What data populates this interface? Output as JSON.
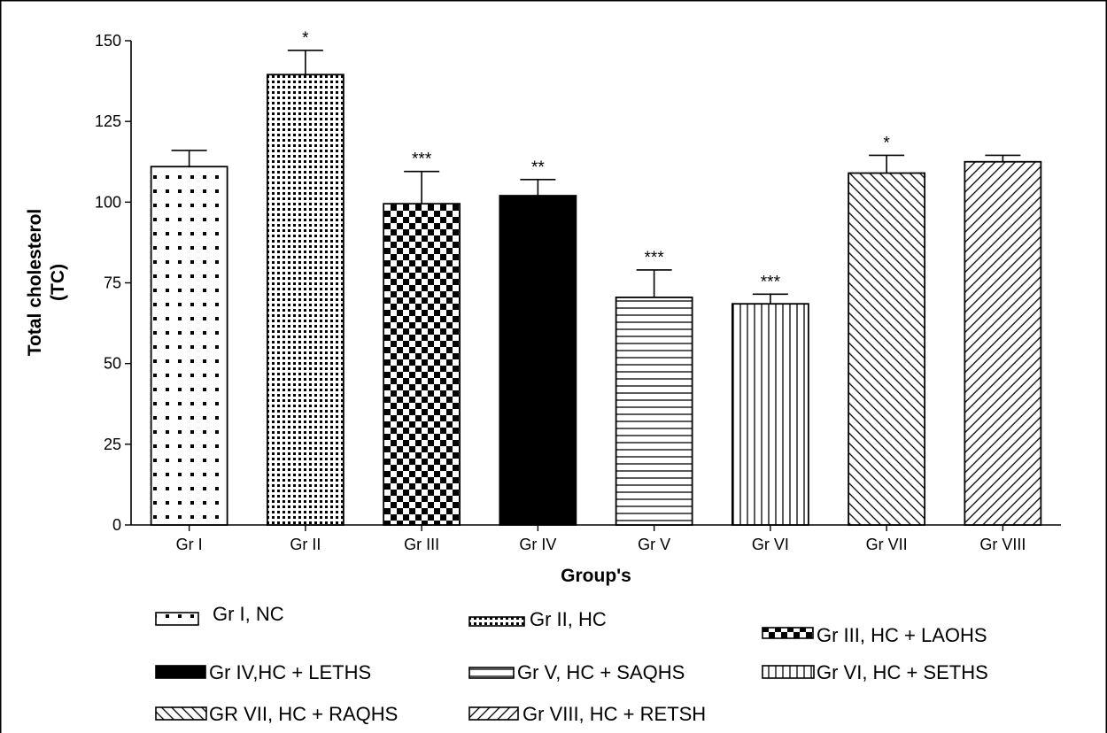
{
  "chart_data": {
    "type": "bar",
    "title": "",
    "xlabel": "Group's",
    "ylabel_lines": [
      "Total cholesterol",
      "(TC)"
    ],
    "ylim": [
      0,
      150
    ],
    "yticks": [
      0,
      25,
      50,
      75,
      100,
      125,
      150
    ],
    "grid": false,
    "categories": [
      "Gr I",
      "Gr II",
      "Gr III",
      "Gr IV",
      "Gr V",
      "Gr VI",
      "Gr VII",
      "Gr VIII"
    ],
    "values": [
      111,
      139.5,
      99.5,
      102,
      70.5,
      68.5,
      109,
      112.5
    ],
    "errors": [
      5,
      7.5,
      10,
      5,
      8.5,
      3,
      5.5,
      2
    ],
    "significance": [
      "",
      "*",
      "***",
      "**",
      "***",
      "***",
      "*",
      ""
    ],
    "legend_placement": "bottom",
    "legend": [
      {
        "label": "Gr I, NC",
        "pattern": "dots-sparse"
      },
      {
        "label": "Gr II, HC",
        "pattern": "dots-dense"
      },
      {
        "label": "Gr III, HC + LAOHS",
        "pattern": "checker"
      },
      {
        "label": "Gr IV,HC + LETHS",
        "pattern": "solid"
      },
      {
        "label": "Gr V, HC + SAQHS",
        "pattern": "horizontal"
      },
      {
        "label": "Gr VI, HC + SETHS",
        "pattern": "vertical"
      },
      {
        "label": "GR VII, HC + RAQHS",
        "pattern": "diag-down"
      },
      {
        "label": "Gr VIII, HC + RETSH",
        "pattern": "diag-up"
      }
    ]
  }
}
